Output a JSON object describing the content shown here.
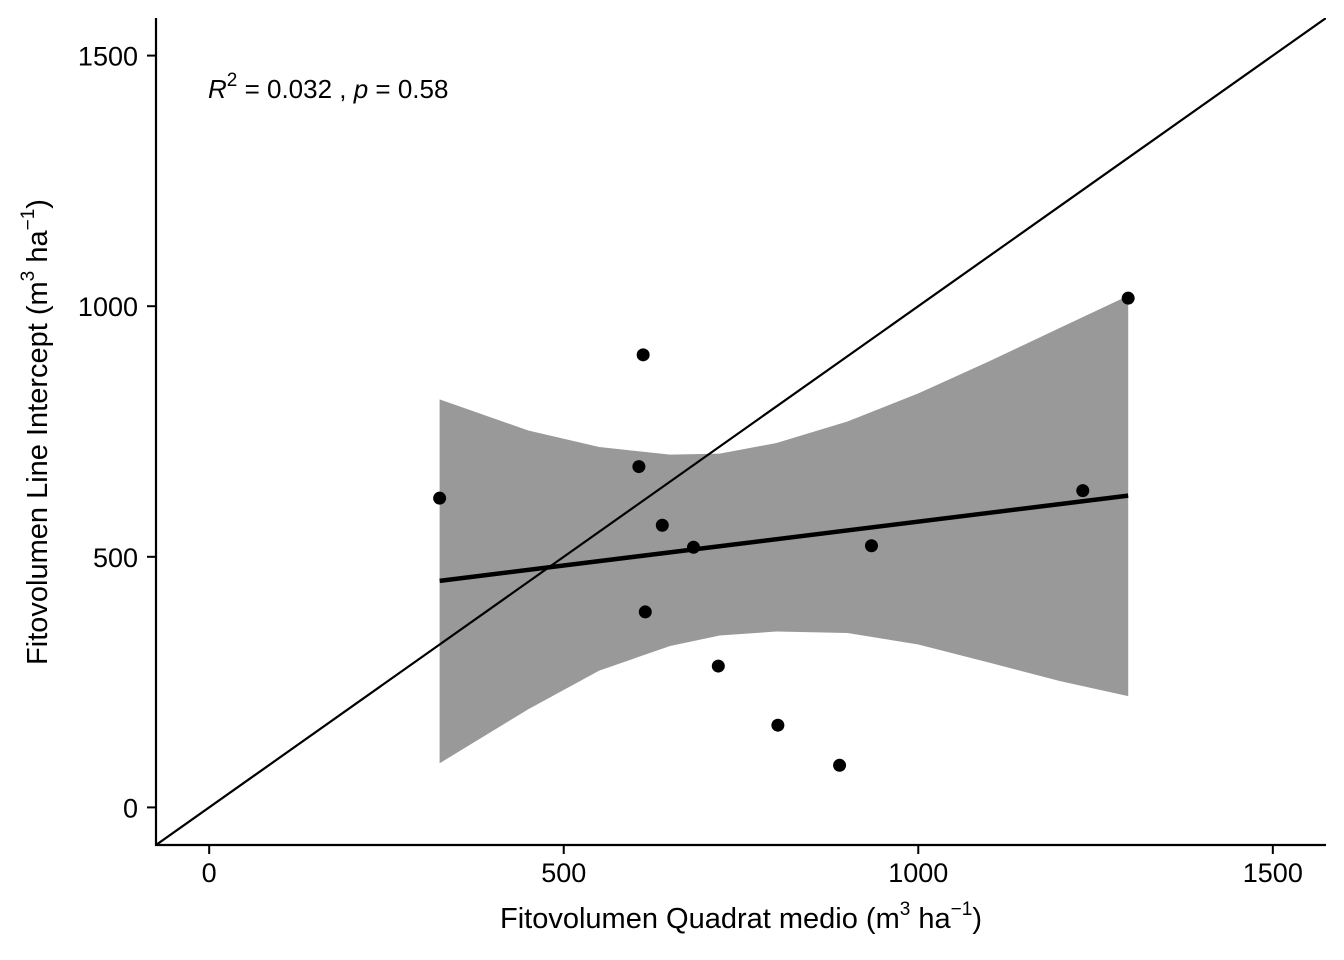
{
  "chart_data": {
    "type": "scatter",
    "title": "",
    "xlabel": {
      "main": "Fitovolumen Quadrat medio (m",
      "sup1": "3",
      "mid": " ha",
      "sup2": "−1",
      "end": ")"
    },
    "ylabel": {
      "main": "Fitovolumen Line Intercept (m",
      "sup1": "3",
      "mid": " ha",
      "sup2": "−1",
      "end": ")"
    },
    "xlim": [
      -75,
      1575
    ],
    "ylim": [
      -75,
      1575
    ],
    "xticks": [
      0,
      500,
      1000,
      1500
    ],
    "yticks": [
      0,
      500,
      1000,
      1500
    ],
    "xtick_labels": [
      "0",
      "500",
      "1000",
      "1500"
    ],
    "ytick_labels": [
      "0",
      "500",
      "1000",
      "1500"
    ],
    "grid": false,
    "points": [
      {
        "x": 325,
        "y": 617
      },
      {
        "x": 606,
        "y": 680
      },
      {
        "x": 612,
        "y": 903
      },
      {
        "x": 615,
        "y": 390
      },
      {
        "x": 639,
        "y": 563
      },
      {
        "x": 683,
        "y": 519
      },
      {
        "x": 718,
        "y": 282
      },
      {
        "x": 802,
        "y": 164
      },
      {
        "x": 889,
        "y": 84
      },
      {
        "x": 934,
        "y": 522
      },
      {
        "x": 1232,
        "y": 632
      },
      {
        "x": 1296,
        "y": 1016
      }
    ],
    "regression_line": {
      "x": [
        325,
        1296
      ],
      "y": [
        452,
        622
      ]
    },
    "confidence_band": {
      "x": [
        325,
        450,
        550,
        650,
        720,
        800,
        900,
        1000,
        1100,
        1200,
        1296
      ],
      "upper": [
        814,
        752,
        719,
        704,
        706,
        727,
        770,
        826,
        890,
        957,
        1021
      ],
      "lower": [
        88,
        196,
        273,
        322,
        343,
        351,
        348,
        325,
        289,
        252,
        222
      ]
    },
    "identity_line": {
      "x": [
        -75,
        1575
      ],
      "y": [
        -75,
        1575
      ]
    },
    "annotation": {
      "r_symbol": "R",
      "r_exp": "2",
      "r_value": " = 0.032 , ",
      "p_symbol": "p",
      "p_value": " = 0.58"
    },
    "colors": {
      "points": "#000000",
      "line": "#000000",
      "band": "#999999",
      "background": "#ffffff"
    }
  }
}
